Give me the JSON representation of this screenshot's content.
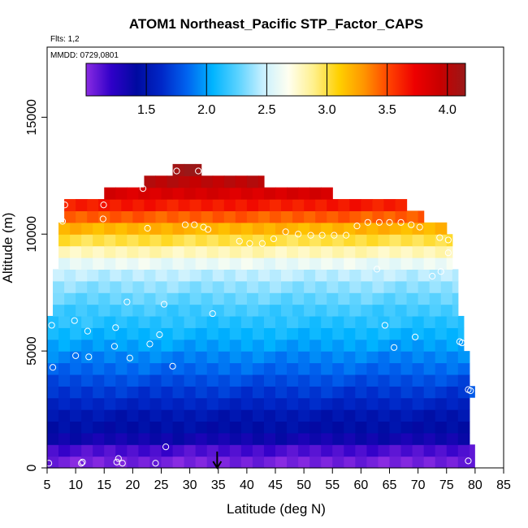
{
  "chart_data": {
    "type": "heatmap",
    "title": "ATOM1 Northeast_Pacific STP_Factor_CAPS",
    "subtitle_flts": "Flts: 1,2",
    "subtitle_mmdd": "MMDD: 0729,0801",
    "xlabel": "Latitude (deg N)",
    "ylabel": "Altitude (m)",
    "xlim": [
      5,
      85
    ],
    "ylim": [
      0,
      18000
    ],
    "xticks": [
      "5",
      "10",
      "15",
      "20",
      "25",
      "30",
      "35",
      "40",
      "45",
      "50",
      "55",
      "60",
      "65",
      "70",
      "75",
      "80",
      "85"
    ],
    "yticks": [
      "0",
      "5000",
      "10000",
      "15000"
    ],
    "colorbar": {
      "range": [
        1.0,
        4.15
      ],
      "ticks": [
        "1.5",
        "2.0",
        "2.5",
        "3.0",
        "3.5",
        "4.0"
      ],
      "stops": [
        "#8a2be2",
        "#2f00c8",
        "#000aa0",
        "#0028c8",
        "#0064f0",
        "#00b4ff",
        "#5ad2ff",
        "#c8f0ff",
        "#fffff0",
        "#fff08c",
        "#ffd000",
        "#ff9400",
        "#ff4000",
        "#ee0000",
        "#c80000",
        "#9a1818"
      ]
    },
    "rows": [
      {
        "alt": [
          0,
          500
        ],
        "lat": [
          5,
          79
        ],
        "value": 1.05
      },
      {
        "alt": [
          500,
          1000
        ],
        "lat": [
          5,
          79
        ],
        "value": 1.15
      },
      {
        "alt": [
          1000,
          1500
        ],
        "lat": [
          5,
          79
        ],
        "value": 1.35
      },
      {
        "alt": [
          1500,
          2000
        ],
        "lat": [
          5,
          79
        ],
        "value": 1.45
      },
      {
        "alt": [
          2000,
          2500
        ],
        "lat": [
          5,
          79
        ],
        "value": 1.5
      },
      {
        "alt": [
          2500,
          3000
        ],
        "lat": [
          5,
          79
        ],
        "value": 1.6
      },
      {
        "alt": [
          3000,
          3500
        ],
        "lat": [
          5,
          79
        ],
        "value": 1.68
      },
      {
        "alt": [
          3500,
          4000
        ],
        "lat": [
          5,
          79
        ],
        "value": 1.76
      },
      {
        "alt": [
          4000,
          4500
        ],
        "lat": [
          5,
          79
        ],
        "value": 1.85
      },
      {
        "alt": [
          4500,
          5000
        ],
        "lat": [
          5,
          79
        ],
        "value": 1.92
      },
      {
        "alt": [
          5000,
          5500
        ],
        "lat": [
          5,
          78
        ],
        "value": 2.0
      },
      {
        "alt": [
          5500,
          6000
        ],
        "lat": [
          5,
          78
        ],
        "value": 2.07
      },
      {
        "alt": [
          6000,
          6500
        ],
        "lat": [
          5,
          78
        ],
        "value": 2.14
      },
      {
        "alt": [
          6500,
          7000
        ],
        "lat": [
          6,
          77
        ],
        "value": 2.2
      },
      {
        "alt": [
          7000,
          7500
        ],
        "lat": [
          6,
          77
        ],
        "value": 2.28
      },
      {
        "alt": [
          7500,
          8000
        ],
        "lat": [
          6,
          77
        ],
        "value": 2.36
      },
      {
        "alt": [
          8000,
          8500
        ],
        "lat": [
          6,
          77
        ],
        "value": 2.45
      },
      {
        "alt": [
          8500,
          9000
        ],
        "lat": [
          7,
          76
        ],
        "value": 2.6
      },
      {
        "alt": [
          9000,
          9500
        ],
        "lat": [
          7,
          76
        ],
        "value": 2.8
      },
      {
        "alt": [
          9500,
          10000
        ],
        "lat": [
          7,
          76
        ],
        "value": 3.0
      },
      {
        "alt": [
          10000,
          10500
        ],
        "lat": [
          7,
          75
        ],
        "value": 3.2
      },
      {
        "alt": [
          10500,
          11000
        ],
        "lat": [
          8,
          71
        ],
        "value": 3.45
      },
      {
        "alt": [
          11000,
          11500
        ],
        "lat": [
          8,
          68
        ],
        "value": 3.65
      },
      {
        "alt": [
          11500,
          12000
        ],
        "lat": [
          15,
          55
        ],
        "value": 3.85
      },
      {
        "alt": [
          12000,
          12500
        ],
        "lat": [
          22,
          43
        ],
        "value": 4.0
      },
      {
        "alt": [
          12500,
          13000
        ],
        "lat": [
          27,
          32
        ],
        "value": 4.15
      }
    ],
    "bins": [
      {
        "alt": [
          3000,
          3500
        ],
        "lat": [
          79,
          80
        ],
        "value": 1.8
      },
      {
        "alt": [
          0,
          1000
        ],
        "lat": [
          79,
          80
        ],
        "value": 1.1
      }
    ],
    "points": [
      {
        "lat": 5.3,
        "alt": 200
      },
      {
        "lat": 11.0,
        "alt": 200
      },
      {
        "lat": 11.2,
        "alt": 250
      },
      {
        "lat": 17.2,
        "alt": 250
      },
      {
        "lat": 17.5,
        "alt": 400
      },
      {
        "lat": 18.2,
        "alt": 200
      },
      {
        "lat": 24.0,
        "alt": 200
      },
      {
        "lat": 25.8,
        "alt": 900
      },
      {
        "lat": 78.8,
        "alt": 300
      },
      {
        "lat": 6.0,
        "alt": 4300
      },
      {
        "lat": 10.0,
        "alt": 4800
      },
      {
        "lat": 12.3,
        "alt": 4750
      },
      {
        "lat": 19.5,
        "alt": 4700
      },
      {
        "lat": 16.8,
        "alt": 5200
      },
      {
        "lat": 23.0,
        "alt": 5300
      },
      {
        "lat": 27.0,
        "alt": 4350
      },
      {
        "lat": 24.7,
        "alt": 5700
      },
      {
        "lat": 5.8,
        "alt": 6100
      },
      {
        "lat": 9.8,
        "alt": 6300
      },
      {
        "lat": 12.1,
        "alt": 5850
      },
      {
        "lat": 17.0,
        "alt": 6000
      },
      {
        "lat": 19.0,
        "alt": 7100
      },
      {
        "lat": 25.5,
        "alt": 7000
      },
      {
        "lat": 34.0,
        "alt": 6600
      },
      {
        "lat": 64.2,
        "alt": 6100
      },
      {
        "lat": 65.8,
        "alt": 5150
      },
      {
        "lat": 69.5,
        "alt": 5600
      },
      {
        "lat": 77.3,
        "alt": 5400
      },
      {
        "lat": 77.7,
        "alt": 5350
      },
      {
        "lat": 78.8,
        "alt": 3350
      },
      {
        "lat": 79.2,
        "alt": 3300
      },
      {
        "lat": 62.8,
        "alt": 8500
      },
      {
        "lat": 72.5,
        "alt": 8200
      },
      {
        "lat": 74.0,
        "alt": 8400
      },
      {
        "lat": 75.3,
        "alt": 9200
      },
      {
        "lat": 75.3,
        "alt": 9750
      },
      {
        "lat": 73.8,
        "alt": 9850
      },
      {
        "lat": 7.7,
        "alt": 10550
      },
      {
        "lat": 8.1,
        "alt": 11250
      },
      {
        "lat": 14.8,
        "alt": 10650
      },
      {
        "lat": 14.9,
        "alt": 11250
      },
      {
        "lat": 22.6,
        "alt": 10250
      },
      {
        "lat": 21.8,
        "alt": 11950
      },
      {
        "lat": 27.7,
        "alt": 12700
      },
      {
        "lat": 31.5,
        "alt": 12700
      },
      {
        "lat": 29.2,
        "alt": 10400
      },
      {
        "lat": 30.8,
        "alt": 10400
      },
      {
        "lat": 32.4,
        "alt": 10300
      },
      {
        "lat": 33.2,
        "alt": 10200
      },
      {
        "lat": 38.7,
        "alt": 9700
      },
      {
        "lat": 40.5,
        "alt": 9600
      },
      {
        "lat": 42.7,
        "alt": 9600
      },
      {
        "lat": 44.7,
        "alt": 9800
      },
      {
        "lat": 46.8,
        "alt": 10100
      },
      {
        "lat": 49.0,
        "alt": 10000
      },
      {
        "lat": 51.2,
        "alt": 9950
      },
      {
        "lat": 53.2,
        "alt": 9950
      },
      {
        "lat": 55.3,
        "alt": 9950
      },
      {
        "lat": 57.4,
        "alt": 9950
      },
      {
        "lat": 59.3,
        "alt": 10350
      },
      {
        "lat": 61.2,
        "alt": 10500
      },
      {
        "lat": 63.2,
        "alt": 10500
      },
      {
        "lat": 65.0,
        "alt": 10500
      },
      {
        "lat": 67.0,
        "alt": 10500
      },
      {
        "lat": 68.8,
        "alt": 10400
      },
      {
        "lat": 70.3,
        "alt": 10300
      }
    ],
    "arrow": {
      "lat": 34.8,
      "alt_from": 700,
      "alt_to": 0
    }
  }
}
